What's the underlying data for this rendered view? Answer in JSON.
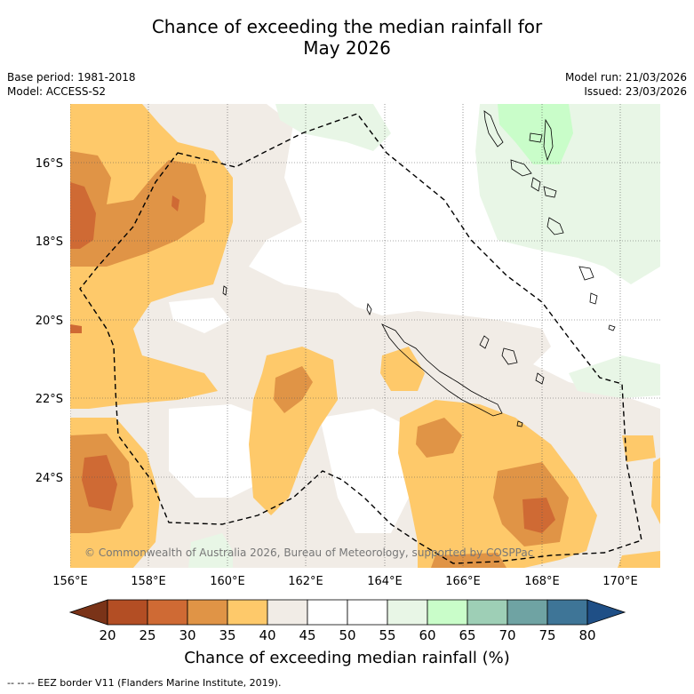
{
  "title_line1": "Chance of exceeding the median rainfall for",
  "title_line2": "May 2026",
  "base_period": "Base period: 1981-2018",
  "model": "Model: ACCESS-S2",
  "model_run": "Model run: 21/03/2026",
  "issued": "Issued: 23/03/2026",
  "lat_labels": [
    "16°S",
    "18°S",
    "20°S",
    "22°S",
    "24°S"
  ],
  "lon_labels": [
    "156°E",
    "158°E",
    "160°E",
    "162°E",
    "164°E",
    "166°E",
    "168°E",
    "170°E"
  ],
  "copyright": "© Commonwealth of Australia 2026, Bureau of Meteorology, supported by COSPPac",
  "colorbar": {
    "ticks": [
      "20",
      "25",
      "30",
      "35",
      "40",
      "45",
      "50",
      "55",
      "60",
      "65",
      "70",
      "75",
      "80"
    ],
    "colors": [
      "#7a3318",
      "#b34e24",
      "#cf6a34",
      "#e09446",
      "#fec96a",
      "#f1ece6",
      "#ffffff",
      "#ffffff",
      "#e8f6e6",
      "#c9fdc9",
      "#9ecfb6",
      "#6fa3a3",
      "#3e7597",
      "#1f4f86"
    ],
    "label": "Chance of exceeding median rainfall (%)"
  },
  "footnote": "--  --  -- EEZ border V11 (Flanders Marine Institute, 2019)."
}
